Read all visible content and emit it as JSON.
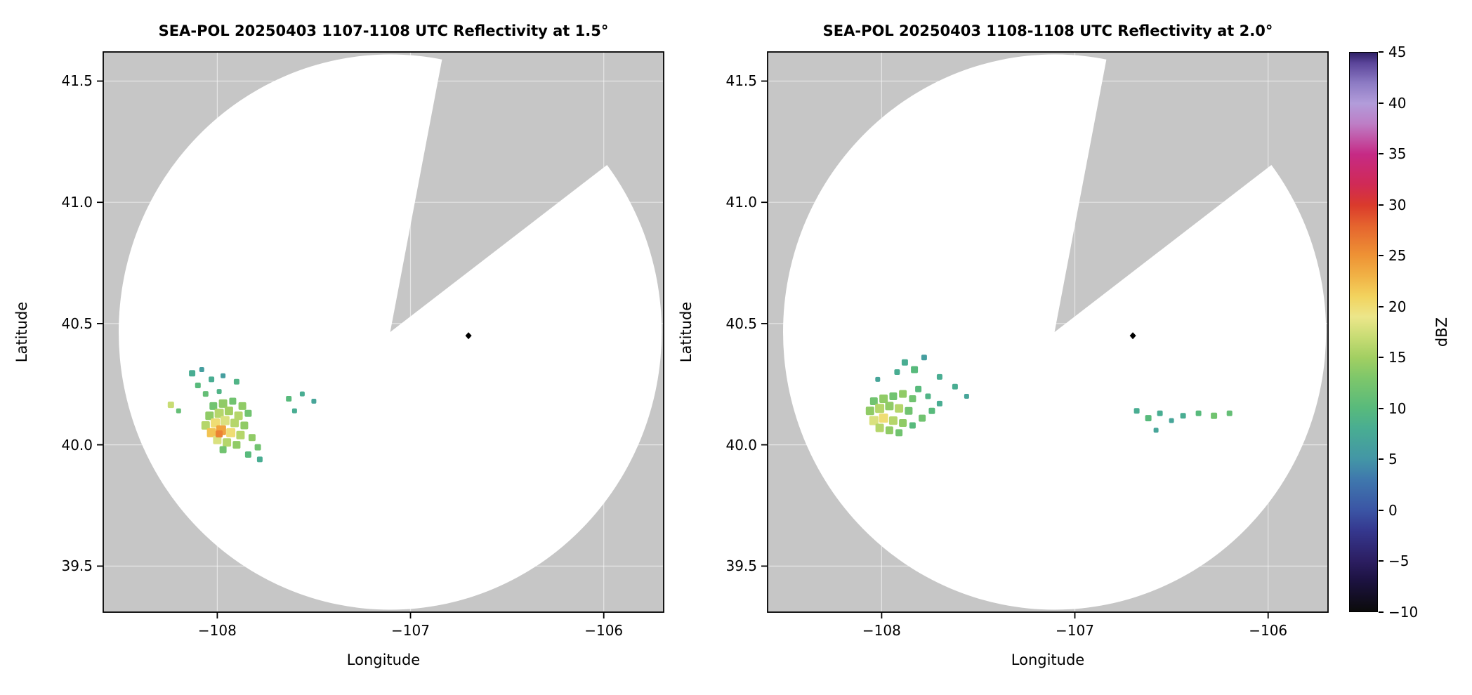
{
  "styles": {
    "plot_bg": "#c6c6c6",
    "scan_fill": "#ffffff",
    "grid": "rgba(255,255,255,0.55)",
    "marker": "#000000",
    "border": "#000000"
  },
  "chart_data": {
    "type": "heatmap",
    "description": "Two radar PPI reflectivity maps (lon/lat) with shared dBZ colorbar",
    "panels": [
      {
        "title": "SEA-POL 20250403 1107-1108 UTC Reflectivity at 1.5°",
        "xlabel": "Longitude",
        "ylabel": "Latitude",
        "xlim": [
          -108.59,
          -105.69
        ],
        "ylim": [
          39.31,
          41.62
        ],
        "xticks": [
          {
            "v": -108,
            "label": "−108"
          },
          {
            "v": -107,
            "label": "−107"
          },
          {
            "v": -106,
            "label": "−106"
          }
        ],
        "yticks": [
          {
            "v": 39.5,
            "label": "39.5"
          },
          {
            "v": 40.0,
            "label": "40.0"
          },
          {
            "v": 40.5,
            "label": "40.5"
          },
          {
            "v": 41.0,
            "label": "41.0"
          },
          {
            "v": 41.5,
            "label": "41.5"
          }
        ],
        "radar": {
          "center_lon": -107.105,
          "center_lat": 40.465,
          "radius_lon": 1.405,
          "radius_lat": 1.145,
          "wedge_start_deg": 37,
          "wedge_end_deg": 79
        },
        "marker": {
          "lon": -106.7,
          "lat": 40.45
        },
        "echo_fields": [
          "lon",
          "lat",
          "dbz",
          "size_px"
        ],
        "echoes": [
          [
            -108.13,
            40.295,
            8,
            9
          ],
          [
            -108.08,
            40.31,
            6,
            7
          ],
          [
            -108.03,
            40.27,
            8,
            8
          ],
          [
            -107.97,
            40.285,
            6,
            7
          ],
          [
            -107.9,
            40.26,
            9,
            8
          ],
          [
            -108.1,
            40.245,
            10,
            8
          ],
          [
            -108.24,
            40.165,
            17,
            9
          ],
          [
            -108.2,
            40.14,
            11,
            7
          ],
          [
            -108.06,
            40.21,
            11,
            8
          ],
          [
            -107.99,
            40.22,
            9,
            7
          ],
          [
            -108.02,
            40.16,
            12,
            11
          ],
          [
            -107.97,
            40.17,
            14,
            12
          ],
          [
            -107.92,
            40.18,
            12,
            10
          ],
          [
            -107.87,
            40.16,
            14,
            11
          ],
          [
            -108.04,
            40.12,
            14,
            12
          ],
          [
            -107.99,
            40.13,
            16,
            13
          ],
          [
            -107.94,
            40.14,
            15,
            12
          ],
          [
            -107.89,
            40.12,
            16,
            12
          ],
          [
            -107.84,
            40.13,
            12,
            10
          ],
          [
            -108.06,
            40.08,
            16,
            12
          ],
          [
            -108.01,
            40.09,
            20,
            13
          ],
          [
            -107.96,
            40.1,
            18,
            13
          ],
          [
            -107.91,
            40.09,
            16,
            12
          ],
          [
            -107.86,
            40.08,
            14,
            11
          ],
          [
            -108.03,
            40.05,
            22,
            13
          ],
          [
            -107.98,
            40.06,
            24,
            14
          ],
          [
            -107.93,
            40.05,
            20,
            13
          ],
          [
            -107.88,
            40.04,
            16,
            12
          ],
          [
            -108.0,
            40.02,
            18,
            12
          ],
          [
            -107.95,
            40.01,
            16,
            12
          ],
          [
            -107.9,
            40.0,
            14,
            11
          ],
          [
            -107.99,
            40.045,
            26,
            10
          ],
          [
            -107.97,
            39.98,
            12,
            10
          ],
          [
            -107.82,
            40.03,
            14,
            10
          ],
          [
            -107.79,
            39.99,
            12,
            9
          ],
          [
            -107.84,
            39.96,
            10,
            9
          ],
          [
            -107.78,
            39.94,
            8,
            8
          ],
          [
            -107.63,
            40.19,
            10,
            8
          ],
          [
            -107.56,
            40.21,
            8,
            7
          ],
          [
            -107.5,
            40.18,
            7,
            7
          ],
          [
            -107.6,
            40.14,
            8,
            7
          ]
        ]
      },
      {
        "title": "SEA-POL 20250403 1108-1108 UTC Reflectivity at 2.0°",
        "xlabel": "Longitude",
        "ylabel": "Latitude",
        "xlim": [
          -108.59,
          -105.69
        ],
        "ylim": [
          39.31,
          41.62
        ],
        "xticks": [
          {
            "v": -108,
            "label": "−108"
          },
          {
            "v": -107,
            "label": "−107"
          },
          {
            "v": -106,
            "label": "−106"
          }
        ],
        "yticks": [
          {
            "v": 39.5,
            "label": "39.5"
          },
          {
            "v": 40.0,
            "label": "40.0"
          },
          {
            "v": 40.5,
            "label": "40.5"
          },
          {
            "v": 41.0,
            "label": "41.0"
          },
          {
            "v": 41.5,
            "label": "41.5"
          }
        ],
        "radar": {
          "center_lon": -107.105,
          "center_lat": 40.465,
          "radius_lon": 1.405,
          "radius_lat": 1.145,
          "wedge_start_deg": 37,
          "wedge_end_deg": 79
        },
        "marker": {
          "lon": -106.7,
          "lat": 40.45
        },
        "echo_fields": [
          "lon",
          "lat",
          "dbz",
          "size_px"
        ],
        "echoes": [
          [
            -107.88,
            40.34,
            8,
            9
          ],
          [
            -107.83,
            40.31,
            10,
            10
          ],
          [
            -107.78,
            40.36,
            6,
            8
          ],
          [
            -107.92,
            40.3,
            8,
            8
          ],
          [
            -108.02,
            40.27,
            7,
            7
          ],
          [
            -107.7,
            40.28,
            8,
            8
          ],
          [
            -108.04,
            40.18,
            12,
            11
          ],
          [
            -107.99,
            40.19,
            14,
            12
          ],
          [
            -107.94,
            40.2,
            12,
            11
          ],
          [
            -107.89,
            40.21,
            14,
            11
          ],
          [
            -107.84,
            40.19,
            12,
            10
          ],
          [
            -108.06,
            40.14,
            14,
            12
          ],
          [
            -108.01,
            40.15,
            16,
            13
          ],
          [
            -107.96,
            40.16,
            14,
            12
          ],
          [
            -107.91,
            40.15,
            16,
            12
          ],
          [
            -107.86,
            40.14,
            12,
            11
          ],
          [
            -108.04,
            40.1,
            18,
            13
          ],
          [
            -107.99,
            40.11,
            20,
            13
          ],
          [
            -107.94,
            40.1,
            16,
            12
          ],
          [
            -107.89,
            40.09,
            14,
            11
          ],
          [
            -108.01,
            40.07,
            16,
            12
          ],
          [
            -107.96,
            40.06,
            14,
            11
          ],
          [
            -107.91,
            40.05,
            12,
            10
          ],
          [
            -107.84,
            40.08,
            10,
            9
          ],
          [
            -107.79,
            40.11,
            12,
            10
          ],
          [
            -107.74,
            40.14,
            10,
            9
          ],
          [
            -107.7,
            40.17,
            8,
            8
          ],
          [
            -107.81,
            40.23,
            10,
            9
          ],
          [
            -107.76,
            40.2,
            9,
            8
          ],
          [
            -107.62,
            40.24,
            8,
            8
          ],
          [
            -107.56,
            40.2,
            7,
            7
          ],
          [
            -106.68,
            40.14,
            8,
            8
          ],
          [
            -106.62,
            40.11,
            10,
            9
          ],
          [
            -106.56,
            40.13,
            8,
            8
          ],
          [
            -106.5,
            40.1,
            7,
            7
          ],
          [
            -106.44,
            40.12,
            8,
            8
          ],
          [
            -106.36,
            40.13,
            10,
            8
          ],
          [
            -106.28,
            40.12,
            12,
            9
          ],
          [
            -106.2,
            40.13,
            11,
            8
          ],
          [
            -106.58,
            40.06,
            7,
            7
          ]
        ]
      }
    ],
    "colorbar": {
      "label": "dBZ",
      "min": -10,
      "max": 45,
      "ticks": [
        {
          "v": 45,
          "label": "45"
        },
        {
          "v": 40,
          "label": "40"
        },
        {
          "v": 35,
          "label": "35"
        },
        {
          "v": 30,
          "label": "30"
        },
        {
          "v": 25,
          "label": "25"
        },
        {
          "v": 20,
          "label": "20"
        },
        {
          "v": 15,
          "label": "15"
        },
        {
          "v": 10,
          "label": "10"
        },
        {
          "v": 5,
          "label": "5"
        },
        {
          "v": 0,
          "label": "0"
        },
        {
          "v": -5,
          "label": "−5"
        },
        {
          "v": -10,
          "label": "−10"
        }
      ],
      "stops": [
        {
          "v": -10,
          "c": "#0b0b0b"
        },
        {
          "v": -7,
          "c": "#1c1240"
        },
        {
          "v": -5,
          "c": "#2c1e62"
        },
        {
          "v": -2,
          "c": "#35388f"
        },
        {
          "v": 0,
          "c": "#3b55a5"
        },
        {
          "v": 3,
          "c": "#3f78ad"
        },
        {
          "v": 5,
          "c": "#4396a6"
        },
        {
          "v": 8,
          "c": "#49ad92"
        },
        {
          "v": 10,
          "c": "#58ba7c"
        },
        {
          "v": 13,
          "c": "#7ec76a"
        },
        {
          "v": 15,
          "c": "#a2cf62"
        },
        {
          "v": 17,
          "c": "#c8dc74"
        },
        {
          "v": 19,
          "c": "#ece68a"
        },
        {
          "v": 21,
          "c": "#f2d35e"
        },
        {
          "v": 23,
          "c": "#f1b246"
        },
        {
          "v": 25,
          "c": "#ee9335"
        },
        {
          "v": 28,
          "c": "#e5632e"
        },
        {
          "v": 30,
          "c": "#da3a2c"
        },
        {
          "v": 32,
          "c": "#d02a55"
        },
        {
          "v": 35,
          "c": "#c62a85"
        },
        {
          "v": 38,
          "c": "#bd7ec6"
        },
        {
          "v": 40,
          "c": "#b29cda"
        },
        {
          "v": 42,
          "c": "#8d7bc4"
        },
        {
          "v": 44,
          "c": "#5a4499"
        },
        {
          "v": 45,
          "c": "#2f2166"
        }
      ]
    }
  }
}
